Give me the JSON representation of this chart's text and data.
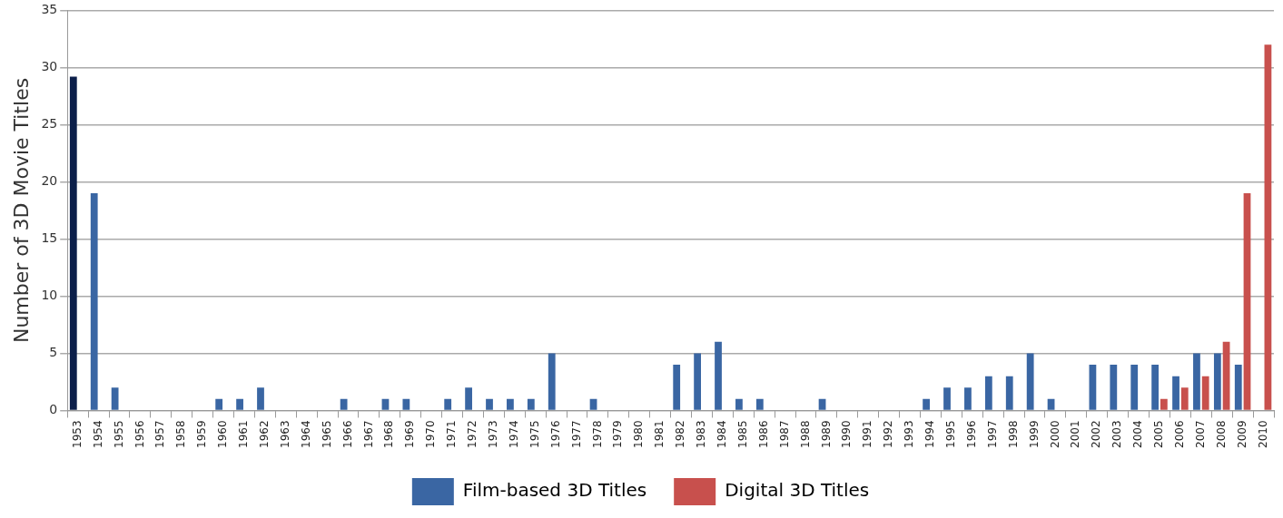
{
  "chart_data": {
    "type": "bar",
    "ylabel": "Number of 3D Movie Titles",
    "categories": [
      "1953",
      "1954",
      "1955",
      "1956",
      "1957",
      "1958",
      "1959",
      "1960",
      "1961",
      "1962",
      "1963",
      "1964",
      "1965",
      "1966",
      "1967",
      "1968",
      "1969",
      "1970",
      "1971",
      "1972",
      "1973",
      "1974",
      "1975",
      "1976",
      "1977",
      "1978",
      "1979",
      "1980",
      "1981",
      "1982",
      "1983",
      "1984",
      "1985",
      "1986",
      "1987",
      "1988",
      "1989",
      "1990",
      "1991",
      "1992",
      "1993",
      "1994",
      "1995",
      "1996",
      "1997",
      "1998",
      "1999",
      "2000",
      "2001",
      "2002",
      "2003",
      "2004",
      "2005",
      "2006",
      "2007",
      "2008",
      "2009",
      "2010"
    ],
    "series": [
      {
        "name": "Film-based 3D Titles",
        "color": "#3a66a3",
        "colors": [
          "#0c1f4a",
          "#3a66a3",
          "#3a66a3",
          "#3a66a3",
          "#3a66a3",
          "#3a66a3",
          "#3a66a3",
          "#3a66a3",
          "#3a66a3",
          "#3a66a3",
          "#3a66a3",
          "#3a66a3",
          "#3a66a3",
          "#3a66a3",
          "#3a66a3",
          "#3a66a3",
          "#3a66a3",
          "#3a66a3",
          "#3a66a3",
          "#3a66a3",
          "#3a66a3",
          "#3a66a3",
          "#3a66a3",
          "#3a66a3",
          "#3a66a3",
          "#3a66a3",
          "#3a66a3",
          "#3a66a3",
          "#3a66a3",
          "#3a66a3",
          "#3a66a3",
          "#3a66a3",
          "#3a66a3",
          "#3a66a3",
          "#3a66a3",
          "#3a66a3",
          "#3a66a3",
          "#3a66a3",
          "#3a66a3",
          "#3a66a3",
          "#3a66a3",
          "#3a66a3",
          "#3a66a3",
          "#3a66a3",
          "#3a66a3",
          "#3a66a3",
          "#3a66a3",
          "#3a66a3",
          "#3a66a3",
          "#3a66a3",
          "#3a66a3",
          "#3a66a3",
          "#3a66a3",
          "#3a66a3",
          "#3a66a3",
          "#3a66a3",
          "#3a66a3",
          "#3a66a3"
        ],
        "values": [
          29.2,
          19,
          2,
          0,
          0,
          0,
          0,
          1,
          1,
          2,
          0,
          0,
          0,
          1,
          0,
          1,
          1,
          0,
          1,
          2,
          1,
          1,
          1,
          5,
          0,
          1,
          0,
          0,
          0,
          4,
          5,
          6,
          1,
          1,
          0,
          0,
          1,
          0,
          0,
          0,
          0,
          1,
          2,
          2,
          3,
          3,
          5,
          1,
          0,
          4,
          4,
          4,
          4,
          3,
          5,
          5,
          4,
          0
        ]
      },
      {
        "name": "Digital 3D Titles",
        "color": "#c8504d",
        "values": [
          0,
          0,
          0,
          0,
          0,
          0,
          0,
          0,
          0,
          0,
          0,
          0,
          0,
          0,
          0,
          0,
          0,
          0,
          0,
          0,
          0,
          0,
          0,
          0,
          0,
          0,
          0,
          0,
          0,
          0,
          0,
          0,
          0,
          0,
          0,
          0,
          0,
          0,
          0,
          0,
          0,
          0,
          0,
          0,
          0,
          0,
          0,
          0,
          0,
          0,
          0,
          0,
          1,
          2,
          3,
          6,
          19,
          32
        ]
      }
    ],
    "ylim": [
      0,
      35
    ],
    "yticks": [
      0,
      5,
      10,
      15,
      20,
      25,
      30,
      35
    ],
    "grid": "y",
    "legend": "bottom"
  }
}
